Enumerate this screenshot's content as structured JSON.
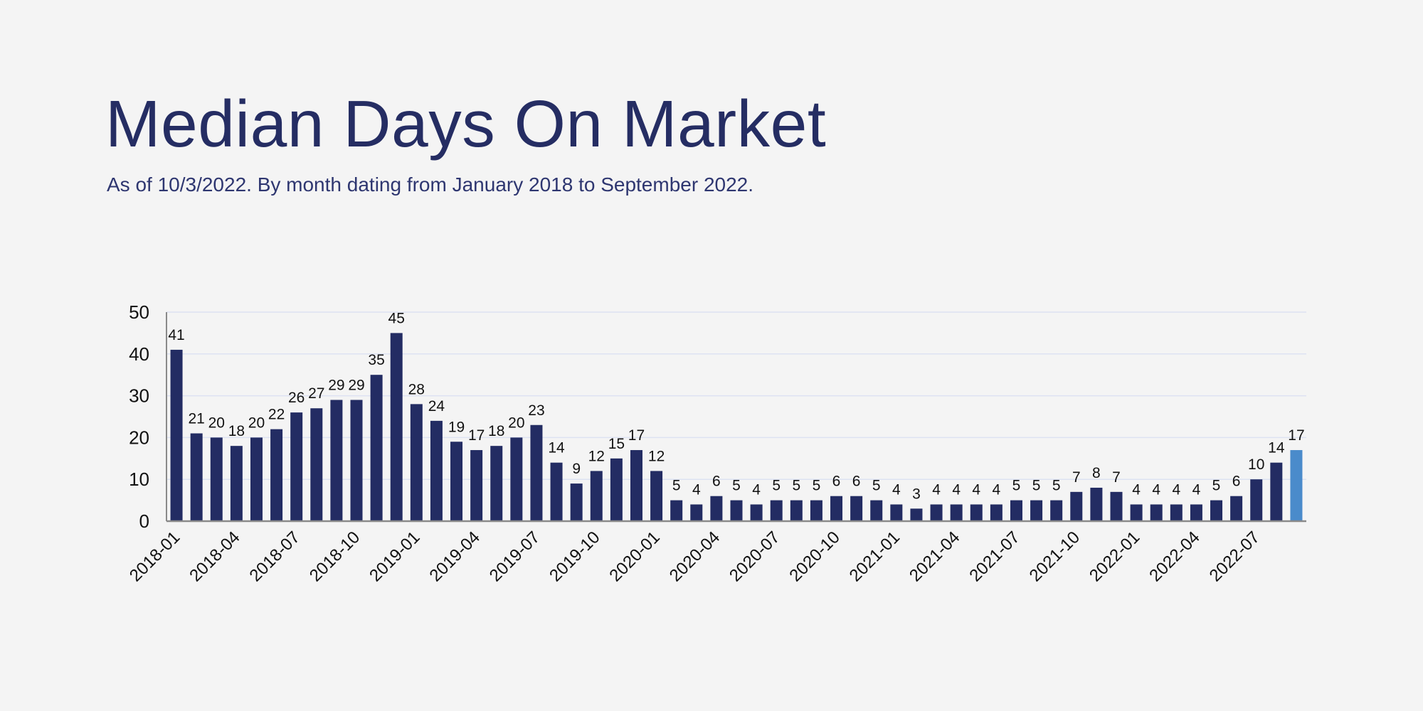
{
  "chart_data": {
    "type": "bar",
    "title": "Median Days On Market",
    "subtitle": "As of 10/3/2022. By month dating from January 2018 to September 2022.",
    "xlabel": "",
    "ylabel": "",
    "ylim": [
      0,
      50
    ],
    "yticks": [
      0,
      10,
      20,
      30,
      40,
      50
    ],
    "grid": true,
    "categories": [
      "2018-01",
      "2018-02",
      "2018-03",
      "2018-04",
      "2018-05",
      "2018-06",
      "2018-07",
      "2018-08",
      "2018-09",
      "2018-10",
      "2018-11",
      "2018-12",
      "2019-01",
      "2019-02",
      "2019-03",
      "2019-04",
      "2019-05",
      "2019-06",
      "2019-07",
      "2019-08",
      "2019-09",
      "2019-10",
      "2019-11",
      "2019-12",
      "2020-01",
      "2020-02",
      "2020-03",
      "2020-04",
      "2020-05",
      "2020-06",
      "2020-07",
      "2020-08",
      "2020-09",
      "2020-10",
      "2020-11",
      "2020-12",
      "2021-01",
      "2021-02",
      "2021-03",
      "2021-04",
      "2021-05",
      "2021-06",
      "2021-07",
      "2021-08",
      "2021-09",
      "2021-10",
      "2021-11",
      "2021-12",
      "2022-01",
      "2022-02",
      "2022-03",
      "2022-04",
      "2022-05",
      "2022-06",
      "2022-07",
      "2022-08",
      "2022-09"
    ],
    "xtick_labels": [
      "2018-01",
      "2018-04",
      "2018-07",
      "2018-10",
      "2019-01",
      "2019-04",
      "2019-07",
      "2019-10",
      "2020-01",
      "2020-04",
      "2020-07",
      "2020-10",
      "2021-01",
      "2021-04",
      "2021-07",
      "2021-10",
      "2022-01",
      "2022-04",
      "2022-07"
    ],
    "values": [
      41,
      21,
      20,
      18,
      20,
      22,
      26,
      27,
      29,
      29,
      35,
      45,
      28,
      24,
      19,
      17,
      18,
      20,
      23,
      14,
      9,
      12,
      15,
      17,
      12,
      5,
      4,
      6,
      5,
      4,
      5,
      5,
      5,
      6,
      6,
      5,
      4,
      3,
      4,
      4,
      4,
      4,
      5,
      5,
      5,
      7,
      8,
      7,
      4,
      4,
      4,
      4,
      5,
      6,
      10,
      14,
      17
    ],
    "data_labels": true,
    "colors": {
      "bar": "#232c63",
      "highlight": "#4a8bcb",
      "title": "#252d63",
      "grid": "#dde2f2"
    },
    "highlight_category": "2022-09"
  }
}
